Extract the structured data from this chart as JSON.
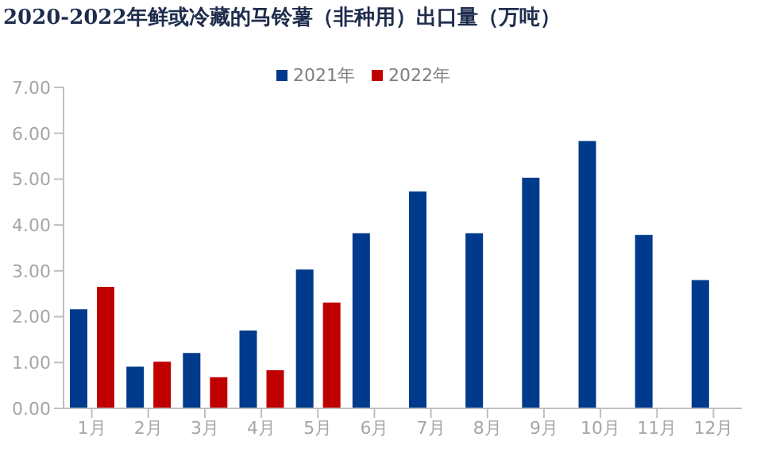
{
  "chart_data": {
    "type": "bar",
    "title": "2020-2022年鲜或冷藏的马铃薯（非种用）出口量（万吨）",
    "categories": [
      "1月",
      "2月",
      "3月",
      "4月",
      "5月",
      "6月",
      "7月",
      "8月",
      "9月",
      "10月",
      "11月",
      "12月"
    ],
    "series": [
      {
        "name": "2021年",
        "color": "#003a8c",
        "values": [
          2.16,
          0.91,
          1.21,
          1.7,
          3.03,
          3.82,
          4.73,
          3.82,
          5.03,
          5.83,
          3.78,
          2.8
        ]
      },
      {
        "name": "2022年",
        "color": "#c00000",
        "values": [
          2.65,
          1.02,
          0.68,
          0.83,
          2.31,
          null,
          null,
          null,
          null,
          null,
          null,
          null
        ]
      }
    ],
    "ylim": [
      0,
      7
    ],
    "yticks": [
      {
        "value": 0,
        "label": "0.00"
      },
      {
        "value": 1,
        "label": "1.00"
      },
      {
        "value": 2,
        "label": "2.00"
      },
      {
        "value": 3,
        "label": "3.00"
      },
      {
        "value": 4,
        "label": "4.00"
      },
      {
        "value": 5,
        "label": "5.00"
      },
      {
        "value": 6,
        "label": "6.00"
      },
      {
        "value": 7,
        "label": "7.00"
      }
    ],
    "grid": false,
    "legend": "top"
  }
}
